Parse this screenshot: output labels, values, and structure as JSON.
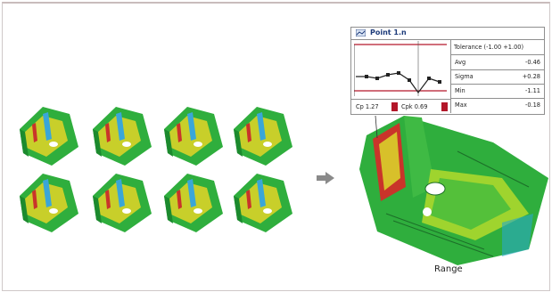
{
  "panel": {
    "title": "Point 1.n",
    "tolerance": "Tolerance (-1.00 +1.00)",
    "stats": [
      {
        "label": "Avg",
        "value": "-0.46"
      },
      {
        "label": "Sigma",
        "value": "+0.28"
      },
      {
        "label": "Min",
        "value": "-1.11"
      },
      {
        "label": "Max",
        "value": "-0.18"
      }
    ],
    "cp_label": "Cp 1.27",
    "cpk_label": "Cpk 0.69"
  },
  "caption": "Range",
  "colors": {
    "accent": "#b3172a",
    "title": "#1d3b7a",
    "surface_green": "#2faa3a",
    "surface_yellow": "#d8d020",
    "surface_red": "#c9342a",
    "surface_blue": "#3aa6d8"
  },
  "icons": {
    "panel": "point-chart-icon",
    "arrow": "right-arrow-icon"
  }
}
